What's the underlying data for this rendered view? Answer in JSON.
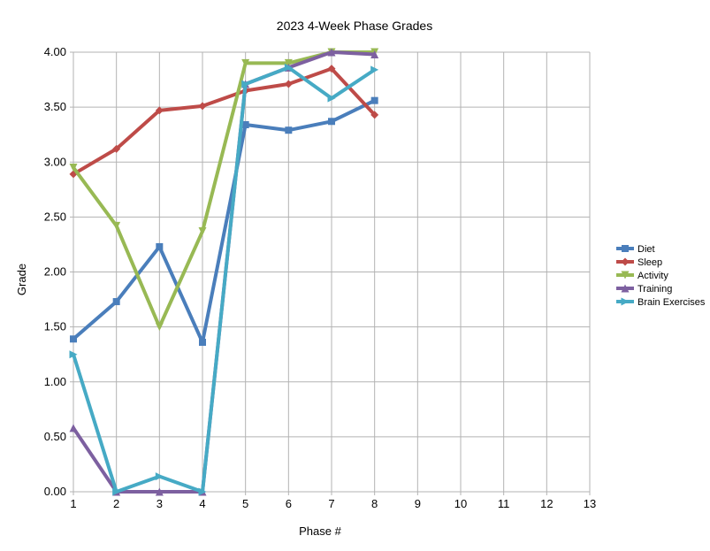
{
  "chart_data": {
    "type": "line",
    "title": "2023 4-Week Phase Grades",
    "xlabel": "Phase #",
    "ylabel": "Grade",
    "xlim": [
      1,
      13
    ],
    "ylim": [
      0,
      4
    ],
    "x_ticks": [
      1,
      2,
      3,
      4,
      5,
      6,
      7,
      8,
      9,
      10,
      11,
      12,
      13
    ],
    "y_ticks": [
      "0.00",
      "0.50",
      "1.00",
      "1.50",
      "2.00",
      "2.50",
      "3.00",
      "3.50",
      "4.00"
    ],
    "grid": true,
    "legend_position": "right",
    "x": [
      1,
      2,
      3,
      4,
      5,
      6,
      7,
      8
    ],
    "series": [
      {
        "name": "Diet",
        "color": "#4a7ebb",
        "marker": "square",
        "values": [
          1.39,
          1.73,
          2.23,
          1.36,
          3.34,
          3.29,
          3.37,
          3.56
        ]
      },
      {
        "name": "Sleep",
        "color": "#be4b48",
        "marker": "diamond",
        "values": [
          2.89,
          3.12,
          3.47,
          3.51,
          3.65,
          3.71,
          3.85,
          3.43
        ]
      },
      {
        "name": "Activity",
        "color": "#98b954",
        "marker": "triangle-down",
        "values": [
          2.95,
          2.42,
          1.5,
          2.37,
          3.9,
          3.9,
          4.0,
          4.0
        ]
      },
      {
        "name": "Training",
        "color": "#7d60a0",
        "marker": "triangle-up",
        "values": [
          0.58,
          0.0,
          0.0,
          0.0,
          3.71,
          3.86,
          4.0,
          3.98
        ]
      },
      {
        "name": "Brain Exercises",
        "color": "#46aac5",
        "marker": "triangle-right",
        "values": [
          1.25,
          0.0,
          0.14,
          0.0,
          3.71,
          3.86,
          3.58,
          3.84
        ]
      }
    ]
  }
}
